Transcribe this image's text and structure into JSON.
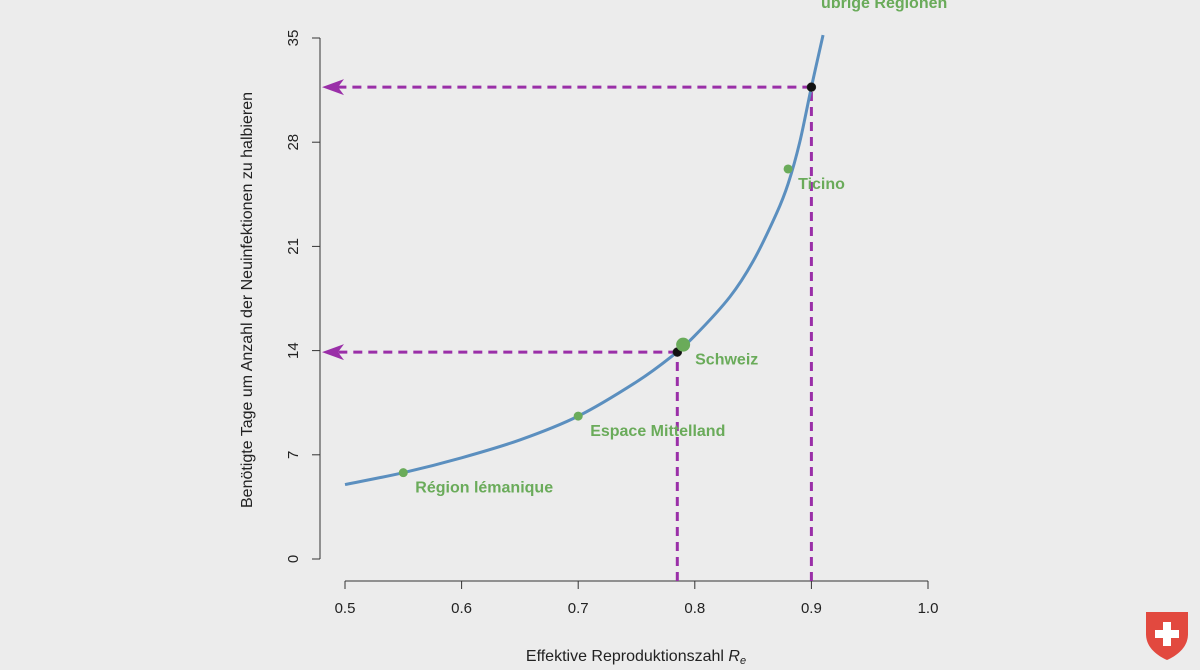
{
  "chart_data": {
    "type": "line",
    "xlabel": "Effektive Reproduktionszahl",
    "xlabel_subscript": "R",
    "xlabel_subscript_index": "e",
    "ylabel": "Benötigte Tage um Anzahl der Neuinfektionen zu halbieren",
    "xlim": [
      0.5,
      1.0
    ],
    "ylim": [
      0,
      35
    ],
    "xticks": [
      "0.5",
      "0.6",
      "0.7",
      "0.8",
      "0.9",
      "1.0"
    ],
    "xtick_values": [
      0.5,
      0.6,
      0.7,
      0.8,
      0.9,
      1.0
    ],
    "yticks": [
      "0",
      "7",
      "14",
      "21",
      "28",
      "35"
    ],
    "ytick_values": [
      0,
      7,
      14,
      21,
      28,
      35
    ],
    "grid": false,
    "curve": {
      "name": "",
      "x": [
        0.5,
        0.55,
        0.6,
        0.65,
        0.7,
        0.75,
        0.78,
        0.8,
        0.83,
        0.85,
        0.87,
        0.88,
        0.89,
        0.9,
        0.91
      ],
      "y": [
        5.0,
        5.8,
        6.8,
        8.0,
        9.6,
        11.9,
        13.6,
        15.0,
        17.6,
        20.0,
        23.2,
        25.2,
        28.0,
        31.7,
        35.2
      ],
      "color": "#5b8fbf"
    },
    "points": [
      {
        "label": "Région lémanique",
        "x": 0.55,
        "y": 5.8,
        "color": "#6aab5a"
      },
      {
        "label": "Espace Mittelland",
        "x": 0.7,
        "y": 9.6,
        "color": "#6aab5a"
      },
      {
        "label": "Schweiz",
        "x": 0.79,
        "y": 14.4,
        "color": "#6aab5a",
        "large": true
      },
      {
        "label": "Ticino",
        "x": 0.88,
        "y": 26.2,
        "color": "#6aab5a"
      },
      {
        "label": "übrige Regionen",
        "x": 0.91,
        "y": 36.6,
        "color": "#6aab5a"
      }
    ],
    "markers": [
      {
        "x": 0.785,
        "y": 13.9,
        "color": "#111111"
      },
      {
        "x": 0.9,
        "y": 31.7,
        "color": "#111111"
      }
    ],
    "reference_lines": [
      {
        "x": 0.785,
        "y": 13.9,
        "color": "#9a2fa8"
      },
      {
        "x": 0.9,
        "y": 31.7,
        "color": "#9a2fa8"
      }
    ]
  },
  "logo": {
    "name": "swiss-shield-logo",
    "color": "#e2493f"
  }
}
